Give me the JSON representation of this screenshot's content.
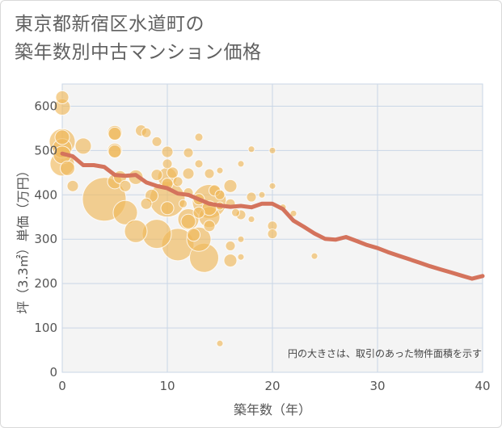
{
  "chart_data": {
    "type": "scatter",
    "title_lines": [
      "東京都新宿区水道町の",
      "築年数別中古マンション価格"
    ],
    "xlabel": "築年数（年）",
    "ylabel": "坪（3.3㎡）単価（万円）",
    "xlim": [
      0,
      40
    ],
    "ylim": [
      0,
      650
    ],
    "xticks": [
      0,
      10,
      20,
      30,
      40
    ],
    "yticks": [
      0,
      100,
      200,
      300,
      400,
      500,
      600
    ],
    "grid": true,
    "note": "円の大きさは、取引のあった物件面積を示す",
    "colors": {
      "bubble": "#f0b85a",
      "line": "#d4735c",
      "plot_bg": "#f4f4f4",
      "grid": "#c9d6e6"
    },
    "series": [
      {
        "type": "bubble",
        "points": [
          {
            "x": 0,
            "y": 620,
            "s": 8
          },
          {
            "x": 0,
            "y": 598,
            "s": 10
          },
          {
            "x": 0,
            "y": 530,
            "s": 9
          },
          {
            "x": 0,
            "y": 520,
            "s": 16
          },
          {
            "x": 0,
            "y": 505,
            "s": 12
          },
          {
            "x": 0,
            "y": 490,
            "s": 11
          },
          {
            "x": 0,
            "y": 470,
            "s": 15
          },
          {
            "x": 0.5,
            "y": 460,
            "s": 9
          },
          {
            "x": 1,
            "y": 420,
            "s": 7
          },
          {
            "x": 2,
            "y": 510,
            "s": 10
          },
          {
            "x": 4,
            "y": 390,
            "s": 27
          },
          {
            "x": 5,
            "y": 540,
            "s": 9
          },
          {
            "x": 5,
            "y": 538,
            "s": 8
          },
          {
            "x": 5,
            "y": 500,
            "s": 9
          },
          {
            "x": 5,
            "y": 498,
            "s": 8
          },
          {
            "x": 5,
            "y": 430,
            "s": 9
          },
          {
            "x": 5.5,
            "y": 440,
            "s": 8
          },
          {
            "x": 6,
            "y": 420,
            "s": 7
          },
          {
            "x": 6,
            "y": 360,
            "s": 15
          },
          {
            "x": 7,
            "y": 440,
            "s": 9
          },
          {
            "x": 7,
            "y": 318,
            "s": 14
          },
          {
            "x": 7.5,
            "y": 545,
            "s": 7
          },
          {
            "x": 8,
            "y": 540,
            "s": 6
          },
          {
            "x": 8,
            "y": 380,
            "s": 7
          },
          {
            "x": 8.5,
            "y": 398,
            "s": 8
          },
          {
            "x": 9,
            "y": 520,
            "s": 6
          },
          {
            "x": 9,
            "y": 445,
            "s": 7
          },
          {
            "x": 9,
            "y": 312,
            "s": 18
          },
          {
            "x": 10,
            "y": 497,
            "s": 7
          },
          {
            "x": 10,
            "y": 470,
            "s": 6
          },
          {
            "x": 10,
            "y": 440,
            "s": 12
          },
          {
            "x": 10,
            "y": 425,
            "s": 7
          },
          {
            "x": 10,
            "y": 390,
            "s": 22
          },
          {
            "x": 10,
            "y": 370,
            "s": 8
          },
          {
            "x": 10.5,
            "y": 450,
            "s": 7
          },
          {
            "x": 11,
            "y": 430,
            "s": 6
          },
          {
            "x": 11,
            "y": 288,
            "s": 20
          },
          {
            "x": 11.5,
            "y": 380,
            "s": 5
          },
          {
            "x": 12,
            "y": 495,
            "s": 6
          },
          {
            "x": 12,
            "y": 448,
            "s": 7
          },
          {
            "x": 12,
            "y": 405,
            "s": 6
          },
          {
            "x": 12,
            "y": 345,
            "s": 13
          },
          {
            "x": 12,
            "y": 340,
            "s": 9
          },
          {
            "x": 12.5,
            "y": 310,
            "s": 8
          },
          {
            "x": 13,
            "y": 530,
            "s": 5
          },
          {
            "x": 13,
            "y": 470,
            "s": 5
          },
          {
            "x": 13,
            "y": 390,
            "s": 7
          },
          {
            "x": 13,
            "y": 360,
            "s": 7
          },
          {
            "x": 13,
            "y": 300,
            "s": 15
          },
          {
            "x": 13.5,
            "y": 258,
            "s": 18
          },
          {
            "x": 14,
            "y": 448,
            "s": 6
          },
          {
            "x": 14,
            "y": 385,
            "s": 21
          },
          {
            "x": 14,
            "y": 370,
            "s": 9
          },
          {
            "x": 14,
            "y": 350,
            "s": 13
          },
          {
            "x": 14,
            "y": 330,
            "s": 7
          },
          {
            "x": 14.5,
            "y": 410,
            "s": 7
          },
          {
            "x": 15,
            "y": 455,
            "s": 4
          },
          {
            "x": 15,
            "y": 400,
            "s": 6
          },
          {
            "x": 15,
            "y": 375,
            "s": 5
          },
          {
            "x": 15,
            "y": 65,
            "s": 4
          },
          {
            "x": 16,
            "y": 420,
            "s": 8
          },
          {
            "x": 16,
            "y": 380,
            "s": 6
          },
          {
            "x": 16,
            "y": 285,
            "s": 6
          },
          {
            "x": 16,
            "y": 252,
            "s": 8
          },
          {
            "x": 16.5,
            "y": 360,
            "s": 5
          },
          {
            "x": 17,
            "y": 470,
            "s": 4
          },
          {
            "x": 17,
            "y": 355,
            "s": 6
          },
          {
            "x": 17,
            "y": 300,
            "s": 4
          },
          {
            "x": 17,
            "y": 260,
            "s": 4
          },
          {
            "x": 18,
            "y": 503,
            "s": 4
          },
          {
            "x": 18,
            "y": 395,
            "s": 6
          },
          {
            "x": 18,
            "y": 345,
            "s": 4
          },
          {
            "x": 19,
            "y": 400,
            "s": 4
          },
          {
            "x": 20,
            "y": 500,
            "s": 4
          },
          {
            "x": 20,
            "y": 420,
            "s": 4
          },
          {
            "x": 20,
            "y": 330,
            "s": 6
          },
          {
            "x": 20,
            "y": 312,
            "s": 6
          },
          {
            "x": 21,
            "y": 372,
            "s": 4
          },
          {
            "x": 22,
            "y": 358,
            "s": 4
          },
          {
            "x": 24,
            "y": 262,
            "s": 4
          }
        ]
      },
      {
        "type": "line",
        "x": [
          0,
          1,
          2,
          3,
          4,
          5,
          6,
          7,
          8,
          9,
          10,
          11,
          12,
          13,
          14,
          15,
          16,
          17,
          18,
          19,
          20,
          21,
          22,
          23,
          24,
          25,
          26,
          27,
          28,
          29,
          30,
          31,
          32,
          33,
          34,
          35,
          36,
          37,
          38,
          39,
          40
        ],
        "y": [
          493,
          487,
          467,
          467,
          463,
          445,
          443,
          445,
          428,
          420,
          415,
          403,
          400,
          390,
          380,
          376,
          373,
          375,
          372,
          380,
          380,
          368,
          342,
          328,
          313,
          301,
          299,
          305,
          296,
          287,
          280,
          271,
          263,
          255,
          247,
          239,
          232,
          225,
          218,
          211,
          217
        ]
      }
    ]
  }
}
